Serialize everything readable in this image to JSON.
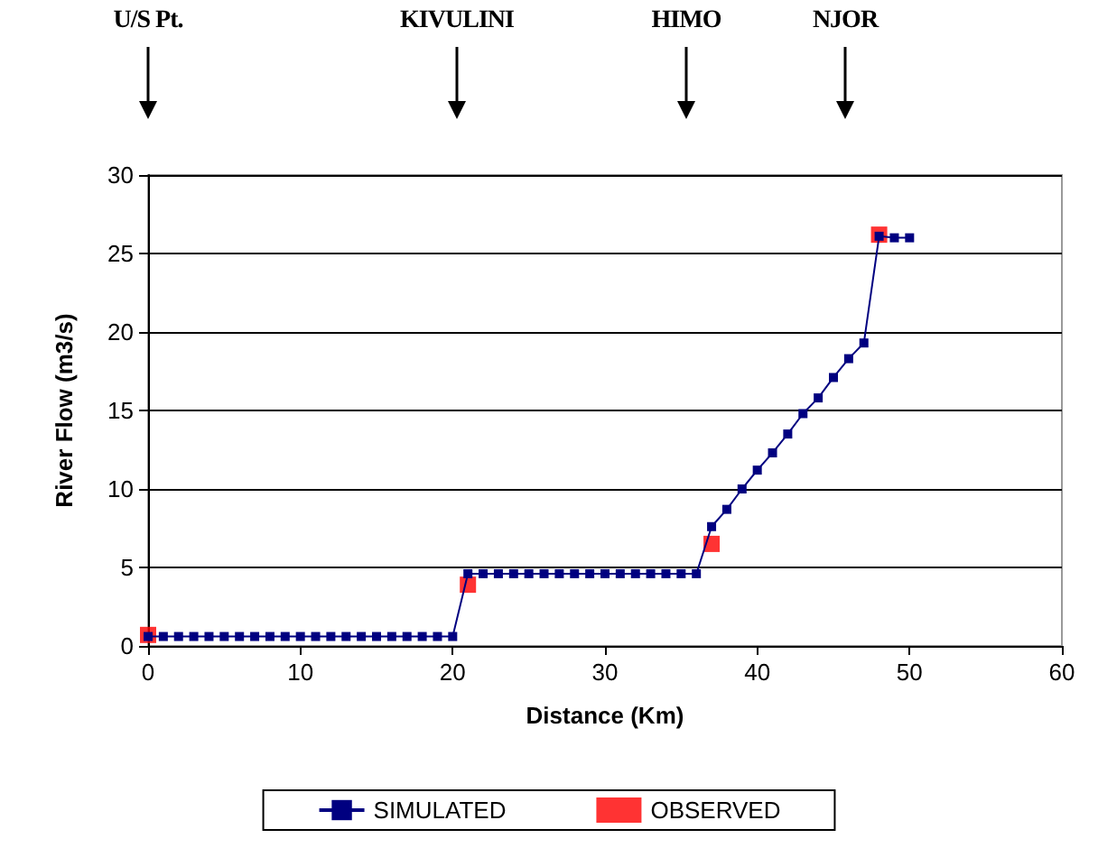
{
  "chart_data": {
    "type": "line",
    "xlabel": "Distance (Km)",
    "ylabel": "River Flow (m3/s)",
    "series": [
      {
        "name": "SIMULATED",
        "color": "#000080",
        "marker": "square",
        "x": [
          0,
          1,
          2,
          3,
          4,
          5,
          6,
          7,
          8,
          9,
          10,
          11,
          12,
          13,
          14,
          15,
          16,
          17,
          18,
          19,
          20,
          21,
          22,
          23,
          24,
          25,
          26,
          27,
          28,
          29,
          30,
          31,
          32,
          33,
          34,
          35,
          36,
          37,
          38,
          39,
          40,
          41,
          42,
          43,
          44,
          45,
          46,
          47,
          48,
          49,
          50
        ],
        "values": [
          0.6,
          0.6,
          0.6,
          0.6,
          0.6,
          0.6,
          0.6,
          0.6,
          0.6,
          0.6,
          0.6,
          0.6,
          0.6,
          0.6,
          0.6,
          0.6,
          0.6,
          0.6,
          0.6,
          0.6,
          0.6,
          4.6,
          4.6,
          4.6,
          4.6,
          4.6,
          4.6,
          4.6,
          4.6,
          4.6,
          4.6,
          4.6,
          4.6,
          4.6,
          4.6,
          4.6,
          4.6,
          7.6,
          8.7,
          10.0,
          11.2,
          12.3,
          13.5,
          14.8,
          15.8,
          17.1,
          18.3,
          19.3,
          26.1,
          26.0,
          26.0
        ]
      },
      {
        "name": "OBSERVED",
        "color": "#ff0000",
        "type": "scatter",
        "marker": "square",
        "x": [
          0,
          21,
          37,
          48
        ],
        "values": [
          0.7,
          3.9,
          6.5,
          26.2
        ]
      }
    ],
    "xlim": [
      0,
      60
    ],
    "xticks": [
      0,
      10,
      20,
      30,
      40,
      50,
      60
    ],
    "ylim": [
      0,
      30
    ],
    "yticks": [
      0,
      5,
      10,
      15,
      20,
      25,
      30
    ],
    "grid": "y",
    "legend": "bottom",
    "annotations": [
      "U/S Pt.",
      "KIVULINI",
      "HIMO",
      "NJOR"
    ]
  }
}
